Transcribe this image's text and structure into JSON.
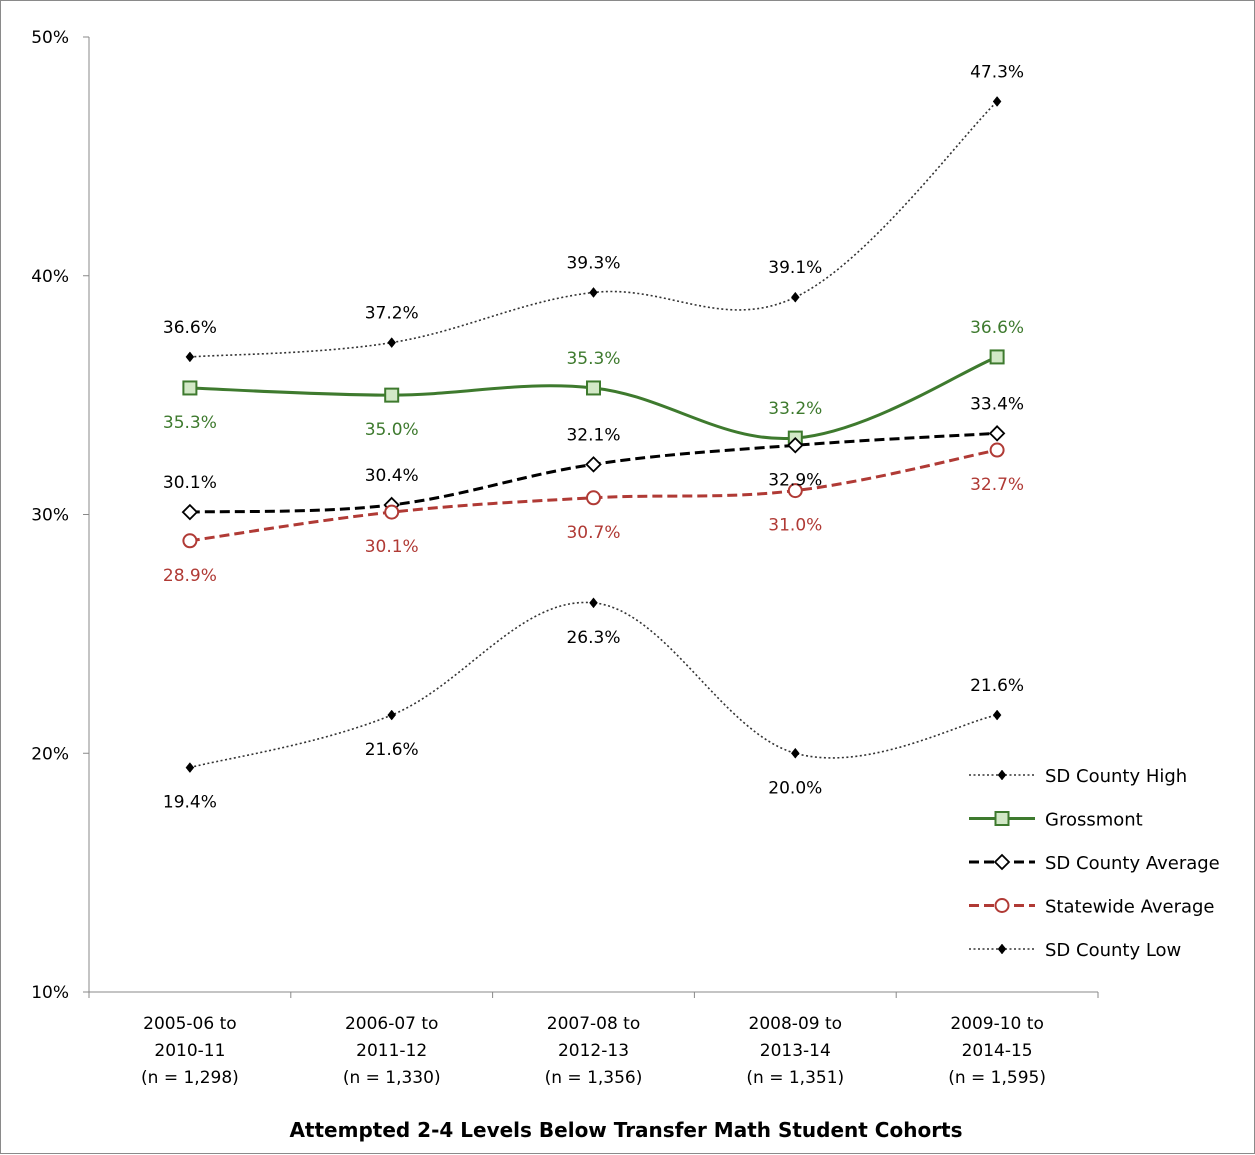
{
  "chart_data": {
    "type": "line",
    "title": "",
    "xlabel": "Attempted 2-4 Levels Below Transfer Math Student Cohorts",
    "ylabel": "",
    "ylim": [
      10,
      50
    ],
    "yticks": [
      "10%",
      "20%",
      "30%",
      "40%",
      "50%"
    ],
    "ytick_values": [
      10,
      20,
      30,
      40,
      50
    ],
    "grid": false,
    "legend_position": "right",
    "categories": [
      [
        "2005-06 to",
        "2010-11",
        "(n = 1,298)"
      ],
      [
        "2006-07 to",
        "2011-12",
        "(n = 1,330)"
      ],
      [
        "2007-08 to",
        "2012-13",
        "(n = 1,356)"
      ],
      [
        "2008-09 to",
        "2013-14",
        "(n = 1,351)"
      ],
      [
        "2009-10 to",
        "2014-15",
        "(n = 1,595)"
      ]
    ],
    "series": [
      {
        "name": "SD County High",
        "values": [
          36.6,
          37.2,
          39.3,
          39.1,
          47.3
        ],
        "labels": [
          "36.6%",
          "37.2%",
          "39.3%",
          "39.1%",
          "47.3%"
        ],
        "label_pos": [
          "above",
          "above",
          "above",
          "above",
          "above"
        ],
        "color": "#333333",
        "style": "dotted",
        "marker": "small-diamond",
        "smooth": true
      },
      {
        "name": "Grossmont",
        "values": [
          35.3,
          35.0,
          35.3,
          33.2,
          36.6
        ],
        "labels": [
          "35.3%",
          "35.0%",
          "35.3%",
          "33.2%",
          "36.6%"
        ],
        "label_pos": [
          "below",
          "below",
          "above",
          "above",
          "above"
        ],
        "color": "#3e7a2e",
        "marker_fill": "#d2e8c6",
        "style": "solid",
        "marker": "square",
        "smooth": true
      },
      {
        "name": "SD County Average",
        "values": [
          30.1,
          30.4,
          32.1,
          32.9,
          33.4
        ],
        "labels": [
          "30.1%",
          "30.4%",
          "32.1%",
          "32.9%",
          "33.4%"
        ],
        "label_pos": [
          "above",
          "above",
          "above",
          "below",
          "above"
        ],
        "color": "#000000",
        "marker_fill": "#ffffff",
        "style": "dashed",
        "marker": "diamond",
        "smooth": true
      },
      {
        "name": "Statewide Average",
        "values": [
          28.9,
          30.1,
          30.7,
          31.0,
          32.7
        ],
        "labels": [
          "28.9%",
          "30.1%",
          "30.7%",
          "31.0%",
          "32.7%"
        ],
        "label_pos": [
          "below",
          "below",
          "below",
          "below",
          "below"
        ],
        "color": "#b03a35",
        "marker_fill": "#ffffff",
        "style": "dashed",
        "marker": "circle",
        "smooth": true
      },
      {
        "name": "SD County Low",
        "values": [
          19.4,
          21.6,
          26.3,
          20.0,
          21.6
        ],
        "labels": [
          "19.4%",
          "21.6%",
          "26.3%",
          "20.0%",
          "21.6%"
        ],
        "label_pos": [
          "below",
          "below",
          "below",
          "below",
          "above"
        ],
        "color": "#333333",
        "style": "dotted",
        "marker": "small-diamond",
        "smooth": true
      }
    ]
  }
}
